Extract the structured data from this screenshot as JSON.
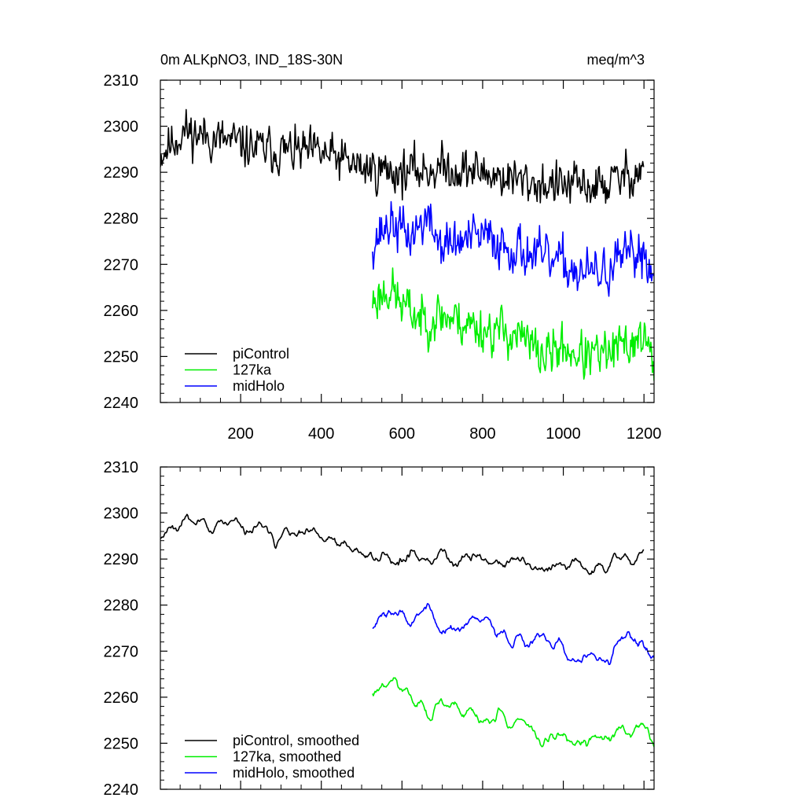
{
  "figure": {
    "title_left": "0m ALKpNO3, IND_18S-30N",
    "title_right": "meq/m^3"
  },
  "chart_data": [
    {
      "type": "line",
      "name": "raw",
      "xlim": [
        1,
        1225
      ],
      "ylim": [
        2240,
        2310
      ],
      "x_ticks": [
        200,
        400,
        600,
        800,
        1000,
        1200
      ],
      "y_ticks": [
        2240,
        2250,
        2260,
        2270,
        2280,
        2290,
        2300,
        2310
      ],
      "series": [
        {
          "name": "piControl",
          "color": "#000000",
          "x_start": 1,
          "x_end": 1200,
          "anchors": [
            [
              1,
              2294
            ],
            [
              60,
              2299
            ],
            [
              150,
              2297
            ],
            [
              250,
              2295
            ],
            [
              400,
              2294
            ],
            [
              500,
              2291
            ],
            [
              600,
              2290
            ],
            [
              700,
              2291
            ],
            [
              800,
              2290
            ],
            [
              900,
              2288
            ],
            [
              1000,
              2287
            ],
            [
              1100,
              2287
            ],
            [
              1200,
              2291
            ]
          ],
          "noise": 3.0,
          "smooth": 1,
          "seed": 11
        },
        {
          "name": "127ka",
          "color": "#00ee00",
          "x_start": 527,
          "x_end": 1225,
          "anchors": [
            [
              527,
              2262
            ],
            [
              570,
              2265
            ],
            [
              600,
              2261
            ],
            [
              650,
              2258
            ],
            [
              700,
              2259
            ],
            [
              800,
              2256
            ],
            [
              880,
              2255
            ],
            [
              950,
              2250
            ],
            [
              1000,
              2252
            ],
            [
              1050,
              2250
            ],
            [
              1100,
              2250
            ],
            [
              1150,
              2252
            ],
            [
              1200,
              2255
            ],
            [
              1225,
              2247
            ]
          ],
          "noise": 3.2,
          "smooth": 1,
          "seed": 23
        },
        {
          "name": "midHolo",
          "color": "#0000ff",
          "x_start": 527,
          "x_end": 1225,
          "anchors": [
            [
              527,
              2275
            ],
            [
              570,
              2279
            ],
            [
              620,
              2276
            ],
            [
              660,
              2280
            ],
            [
              700,
              2274
            ],
            [
              800,
              2276
            ],
            [
              900,
              2273
            ],
            [
              950,
              2271
            ],
            [
              1000,
              2270
            ],
            [
              1050,
              2268
            ],
            [
              1100,
              2268
            ],
            [
              1150,
              2271
            ],
            [
              1200,
              2273
            ],
            [
              1225,
              2267
            ]
          ],
          "noise": 3.2,
          "smooth": 1,
          "seed": 37
        }
      ],
      "legend": {
        "position": "bottom-left",
        "entries": [
          "piControl",
          "127ka",
          "midHolo"
        ]
      }
    },
    {
      "type": "line",
      "name": "smoothed",
      "xlim": [
        1,
        1225
      ],
      "ylim": [
        2240,
        2310
      ],
      "x_ticks": [
        200,
        400,
        600,
        800,
        1000,
        1200
      ],
      "y_ticks": [
        2240,
        2250,
        2260,
        2270,
        2280,
        2290,
        2300,
        2310
      ],
      "series": [
        {
          "name": "piControl, smoothed",
          "color": "#000000",
          "x_start": 1,
          "x_end": 1200,
          "anchors": [
            [
              1,
              2296
            ],
            [
              60,
              2299
            ],
            [
              150,
              2297
            ],
            [
              250,
              2296
            ],
            [
              400,
              2294
            ],
            [
              500,
              2291
            ],
            [
              600,
              2290
            ],
            [
              700,
              2291
            ],
            [
              800,
              2290
            ],
            [
              900,
              2289
            ],
            [
              1000,
              2288
            ],
            [
              1100,
              2288
            ],
            [
              1200,
              2292
            ]
          ],
          "noise": 3.0,
          "smooth": 5,
          "seed": 11
        },
        {
          "name": "127ka, smoothed",
          "color": "#00ee00",
          "x_start": 527,
          "x_end": 1225,
          "anchors": [
            [
              527,
              2261
            ],
            [
              570,
              2265
            ],
            [
              600,
              2261
            ],
            [
              650,
              2258
            ],
            [
              700,
              2259
            ],
            [
              800,
              2256
            ],
            [
              880,
              2255
            ],
            [
              950,
              2250
            ],
            [
              1000,
              2252
            ],
            [
              1050,
              2250
            ],
            [
              1100,
              2250
            ],
            [
              1150,
              2252
            ],
            [
              1200,
              2255
            ],
            [
              1225,
              2247
            ]
          ],
          "noise": 3.2,
          "smooth": 5,
          "seed": 23
        },
        {
          "name": "midHolo, smoothed",
          "color": "#0000ff",
          "x_start": 527,
          "x_end": 1225,
          "anchors": [
            [
              527,
              2277
            ],
            [
              570,
              2279
            ],
            [
              620,
              2276
            ],
            [
              660,
              2280
            ],
            [
              700,
              2274
            ],
            [
              800,
              2276
            ],
            [
              900,
              2273
            ],
            [
              950,
              2271
            ],
            [
              1000,
              2270
            ],
            [
              1050,
              2268
            ],
            [
              1100,
              2268
            ],
            [
              1150,
              2271
            ],
            [
              1200,
              2273
            ],
            [
              1225,
              2268
            ]
          ],
          "noise": 3.2,
          "smooth": 5,
          "seed": 37
        }
      ],
      "legend": {
        "position": "bottom-left",
        "entries": [
          "piControl, smoothed",
          "127ka, smoothed",
          "midHolo, smoothed"
        ]
      }
    }
  ]
}
